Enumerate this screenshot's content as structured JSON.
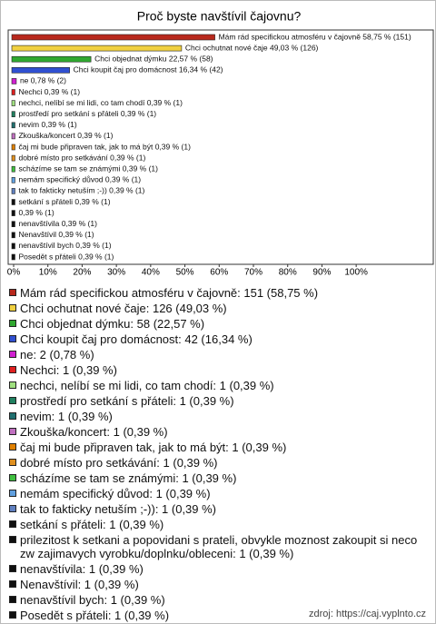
{
  "chart_data": {
    "type": "bar",
    "orientation": "horizontal",
    "title": "Proč byste navštívil čajovnu?",
    "categories": [
      "Mám rád specifickou atmosféru v čajovně",
      "Chci ochutnat nové čaje",
      "Chci objednat dýmku",
      "Chci koupit čaj pro domácnost",
      "ne",
      "Nechci",
      "nechci, nelíbí se mi lidi, co tam chodí",
      "prostředí pro setkání s přáteli",
      "nevim",
      "Zkouška/koncert",
      "čaj mi bude připraven tak, jak to má být",
      "dobré místo pro setkávání",
      "scházíme se tam se známými",
      "nemám specifický důvod",
      "tak to fakticky netuším ;-))",
      "setkání s přáteli",
      "prilezitost k setkani a popovidani s prateli, obvykle moznost zakoupit si neco zw zajimavych vyrobku/doplnku/obleceni",
      "nenavštívila",
      "Nenavštívil",
      "nenavštívil bych",
      "Posedět s přáteli"
    ],
    "values": [
      58.75,
      49.03,
      22.57,
      16.34,
      0.78,
      0.39,
      0.39,
      0.39,
      0.39,
      0.39,
      0.39,
      0.39,
      0.39,
      0.39,
      0.39,
      0.39,
      0.39,
      0.39,
      0.39,
      0.39,
      0.39
    ],
    "value_labels": [
      "Mám rád specifickou atmosféru v čajovně 58,75 % (151)",
      "Chci ochutnat nové čaje 49,03 % (126)",
      "Chci objednat dýmku 22,57 % (58)",
      "Chci koupit čaj pro domácnost 16,34 % (42)",
      "ne 0,78 % (2)",
      "Nechci 0,39 % (1)",
      "nechci, nelíbí se mi lidi, co tam chodí 0,39 % (1)",
      "prostředí pro setkání s přáteli 0,39 % (1)",
      "nevim 0,39 % (1)",
      "Zkouška/koncert 0,39 % (1)",
      "čaj mi bude připraven tak, jak to má být 0,39 % (1)",
      "dobré místo pro setkávání 0,39 % (1)",
      "scházíme se tam se známými 0,39 % (1)",
      "nemám specifický důvod 0,39 % (1)",
      "tak to fakticky netuším ;-)) 0,39 % (1)",
      "setkání s přáteli 0,39 % (1)",
      "0,39 % (1)",
      "nenavštívila 0,39 % (1)",
      "Nenavštívil 0,39 % (1)",
      "nenavštívil bych 0,39 % (1)",
      "Posedět s přáteli 0,39 % (1)"
    ],
    "legend": [
      "Mám rád specifickou atmosféru v čajovně: 151 (58,75 %)",
      "Chci ochutnat nové čaje: 126 (49,03 %)",
      "Chci objednat dýmku: 58 (22,57 %)",
      "Chci koupit čaj pro domácnost: 42 (16,34 %)",
      "ne: 2 (0,78 %)",
      "Nechci: 1 (0,39 %)",
      "nechci, nelíbí se mi lidi, co tam chodí: 1 (0,39 %)",
      "prostředí pro setkání s přáteli: 1 (0,39 %)",
      "nevim: 1 (0,39 %)",
      "Zkouška/koncert: 1 (0,39 %)",
      "čaj mi bude připraven tak, jak to má být: 1 (0,39 %)",
      "dobré místo pro setkávání: 1 (0,39 %)",
      "scházíme se tam se známými: 1 (0,39 %)",
      "nemám specifický důvod: 1 (0,39 %)",
      "tak to fakticky netuším ;-)): 1 (0,39 %)",
      "setkání s přáteli: 1 (0,39 %)",
      "prilezitost k setkani a popovidani s prateli, obvykle moznost zakoupit si neco zw zajimavych vyrobku/doplnku/obleceni: 1 (0,39 %)",
      "nenavštívila: 1 (0,39 %)",
      "Nenavštívil: 1 (0,39 %)",
      "nenavštívil bych: 1 (0,39 %)",
      "Posedět s přáteli: 1 (0,39 %)"
    ],
    "colors": [
      "#b8281c",
      "#f0d040",
      "#30a830",
      "#3050d0",
      "#d020d0",
      "#e02020",
      "#a0e080",
      "#208060",
      "#207070",
      "#c070c0",
      "#e08000",
      "#e09020",
      "#40c040",
      "#60a0e0",
      "#6080c0",
      "#101010",
      "#101010",
      "#101010",
      "#101010",
      "#101010",
      "#101010"
    ],
    "xlim": [
      0,
      122.5
    ],
    "xticks": [
      {
        "value": 0,
        "label": "0%"
      },
      {
        "value": 10,
        "label": "10%"
      },
      {
        "value": 20,
        "label": "20%"
      },
      {
        "value": 30,
        "label": "30%"
      },
      {
        "value": 40,
        "label": "40%"
      },
      {
        "value": 50,
        "label": "50%"
      },
      {
        "value": 60,
        "label": "60%"
      },
      {
        "value": 70,
        "label": "70%"
      },
      {
        "value": 80,
        "label": "80%"
      },
      {
        "value": 90,
        "label": "90%"
      },
      {
        "value": 100,
        "label": "100%"
      }
    ],
    "source": "zdroj: https://caj.vyplnto.cz"
  }
}
